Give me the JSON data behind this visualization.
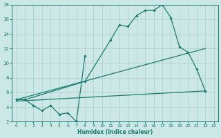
{
  "xlabel": "Humidex (Indice chaleur)",
  "bg_color": "#cce8e6",
  "grid_color": "#aacfcc",
  "line_color": "#1a7a6e",
  "xlim": [
    -0.5,
    23.5
  ],
  "ylim": [
    2,
    18
  ],
  "xticks": [
    0,
    1,
    2,
    3,
    4,
    5,
    6,
    7,
    8,
    9,
    10,
    11,
    12,
    13,
    14,
    15,
    16,
    17,
    18,
    19,
    20,
    21,
    22,
    23
  ],
  "yticks": [
    2,
    4,
    6,
    8,
    10,
    12,
    14,
    16,
    18
  ],
  "curve_x": [
    0,
    1,
    8,
    11,
    12,
    13,
    14,
    15,
    16,
    17,
    18,
    19,
    20,
    21,
    22
  ],
  "curve_y": [
    5.0,
    5.0,
    7.5,
    13.2,
    15.2,
    15.0,
    16.5,
    17.2,
    17.2,
    18.0,
    16.2,
    12.2,
    11.5,
    9.2,
    6.2
  ],
  "jagged_x": [
    0,
    1,
    2,
    3,
    4,
    5,
    6,
    7,
    8
  ],
  "jagged_y": [
    5.0,
    5.0,
    4.2,
    3.5,
    4.2,
    3.0,
    3.2,
    2.0,
    11.0
  ],
  "line1_x": [
    0,
    22
  ],
  "line1_y": [
    4.8,
    6.2
  ],
  "line2_x": [
    0,
    22
  ],
  "line2_y": [
    5.0,
    12.0
  ]
}
